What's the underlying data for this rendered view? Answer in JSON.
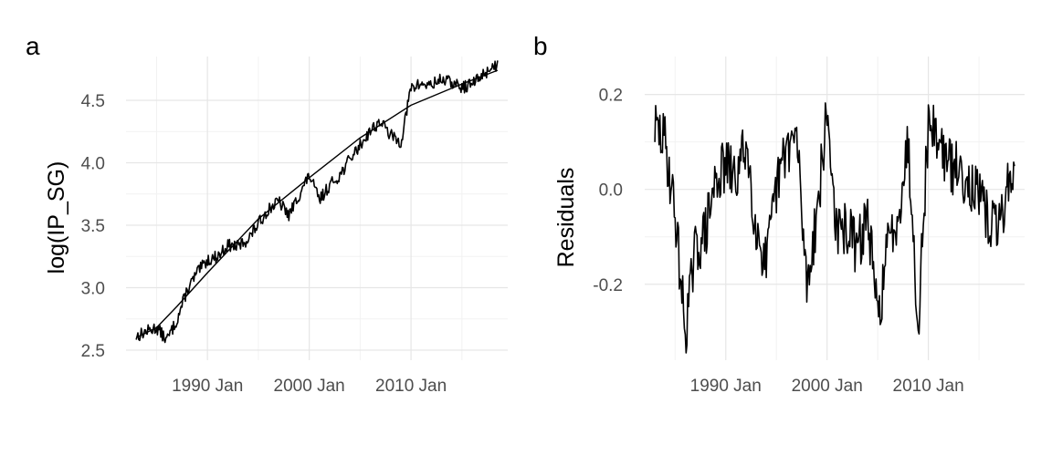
{
  "panels": [
    {
      "tag": "a",
      "ylabel": "log(IP_SG)",
      "xlabel": "",
      "y_ticks": [
        2.5,
        3.0,
        3.5,
        4.0,
        4.5
      ],
      "y_tick_labels": [
        "2.5",
        "3.0",
        "3.5",
        "4.0",
        "4.5"
      ],
      "x_ticks": [
        1990,
        2000,
        2010
      ],
      "x_tick_labels": [
        "1990 Jan",
        "2000 Jan",
        "2010 Jan"
      ]
    },
    {
      "tag": "b",
      "ylabel": "Residuals",
      "xlabel": "",
      "y_ticks": [
        -0.2,
        0.0,
        0.2
      ],
      "y_tick_labels": [
        "-0.2",
        "0.0",
        "0.2"
      ],
      "x_ticks": [
        1990,
        2000,
        2010
      ],
      "x_tick_labels": [
        "1990 Jan",
        "2000 Jan",
        "2010 Jan"
      ]
    }
  ],
  "chart_data": [
    {
      "type": "line",
      "title": "",
      "xlabel": "",
      "ylabel": "log(IP_SG)",
      "xlim": [
        1982.0,
        2019.5
      ],
      "ylim": [
        2.42,
        4.85
      ],
      "grid": true,
      "line_color": "#000000",
      "series": [
        {
          "x": [
            1983.0,
            1984.0,
            1985.0,
            1986.0,
            1987.0,
            1988.0,
            1989.0,
            1990.0,
            1991.0,
            1992.0,
            1993.0,
            1994.0,
            1995.0,
            1996.0,
            1997.0,
            1998.0,
            1999.0,
            2000.0,
            2001.0,
            2002.0,
            2003.0,
            2004.0,
            2005.0,
            2006.0,
            2007.0,
            2008.0,
            2009.0,
            2010.0,
            2011.0,
            2012.0,
            2013.0,
            2014.0,
            2015.0,
            2016.0,
            2017.0,
            2018.0,
            2018.5
          ],
          "values": [
            2.61,
            2.65,
            2.68,
            2.58,
            2.74,
            2.98,
            3.12,
            3.22,
            3.25,
            3.34,
            3.33,
            3.39,
            3.51,
            3.63,
            3.69,
            3.58,
            3.74,
            3.9,
            3.7,
            3.82,
            3.9,
            4.03,
            4.14,
            4.26,
            4.33,
            4.22,
            4.16,
            4.6,
            4.63,
            4.62,
            4.67,
            4.64,
            4.6,
            4.63,
            4.7,
            4.77,
            4.78
          ]
        },
        {
          "x": [
            1983.0,
            1985.0,
            1987.0,
            1990.0,
            1995.0,
            2000.0,
            2005.0,
            2010.0,
            2015.0,
            2018.5
          ],
          "values": [
            2.6,
            2.68,
            2.85,
            3.12,
            3.55,
            3.88,
            4.2,
            4.46,
            4.63,
            4.74
          ]
        }
      ]
    },
    {
      "type": "line",
      "title": "",
      "xlabel": "",
      "ylabel": "Residuals",
      "xlim": [
        1982.0,
        2019.5
      ],
      "ylim": [
        -0.36,
        0.28
      ],
      "grid": true,
      "line_color": "#000000",
      "series": [
        {
          "x": [
            1983.0,
            1984.0,
            1985.0,
            1986.0,
            1987.0,
            1988.0,
            1989.0,
            1990.0,
            1991.0,
            1992.0,
            1993.0,
            1994.0,
            1995.0,
            1996.0,
            1997.0,
            1998.0,
            1999.0,
            2000.0,
            2001.0,
            2002.0,
            2003.0,
            2004.0,
            2005.0,
            2006.0,
            2007.0,
            2008.0,
            2009.0,
            2010.0,
            2011.0,
            2012.0,
            2013.0,
            2014.0,
            2015.0,
            2016.0,
            2017.0,
            2018.0,
            2018.5
          ],
          "values": [
            0.13,
            0.1,
            -0.05,
            -0.3,
            -0.13,
            -0.09,
            0.02,
            0.05,
            0.02,
            0.1,
            -0.08,
            -0.16,
            0.0,
            0.09,
            0.11,
            -0.2,
            -0.05,
            0.16,
            -0.1,
            -0.08,
            -0.13,
            -0.05,
            -0.28,
            -0.12,
            -0.05,
            0.1,
            -0.28,
            0.14,
            0.11,
            0.05,
            0.04,
            0.02,
            -0.02,
            -0.07,
            -0.08,
            0.03,
            0.02
          ]
        }
      ]
    }
  ]
}
